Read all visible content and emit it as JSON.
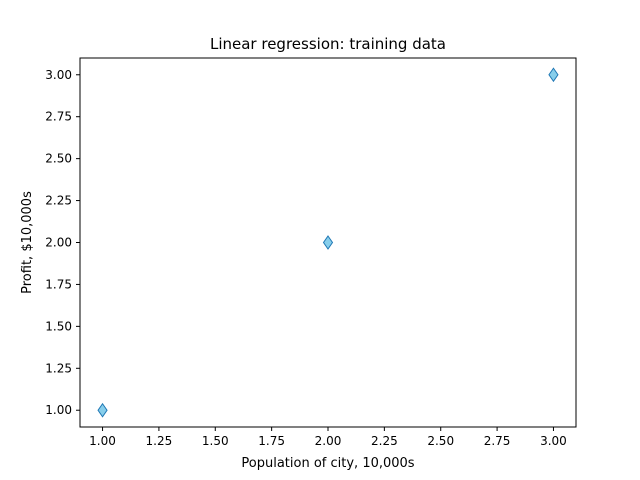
{
  "chart_data": {
    "type": "scatter",
    "title": "Linear regression: training data",
    "xlabel": "Population of city, 10,000s",
    "ylabel": "Profit, $10,000s",
    "xlim": [
      0.9,
      3.1
    ],
    "ylim": [
      0.9,
      3.1
    ],
    "xticks": [
      "1.00",
      "1.25",
      "1.50",
      "1.75",
      "2.00",
      "2.25",
      "2.50",
      "2.75",
      "3.00"
    ],
    "yticks": [
      "1.00",
      "1.25",
      "1.50",
      "1.75",
      "2.00",
      "2.25",
      "2.50",
      "2.75",
      "3.00"
    ],
    "grid": false,
    "marker": "diamond",
    "marker_fill": "#87ceeb",
    "marker_edge": "#1f77b4",
    "points": [
      {
        "x": 1,
        "y": 1
      },
      {
        "x": 2,
        "y": 2
      },
      {
        "x": 3,
        "y": 3
      }
    ]
  }
}
